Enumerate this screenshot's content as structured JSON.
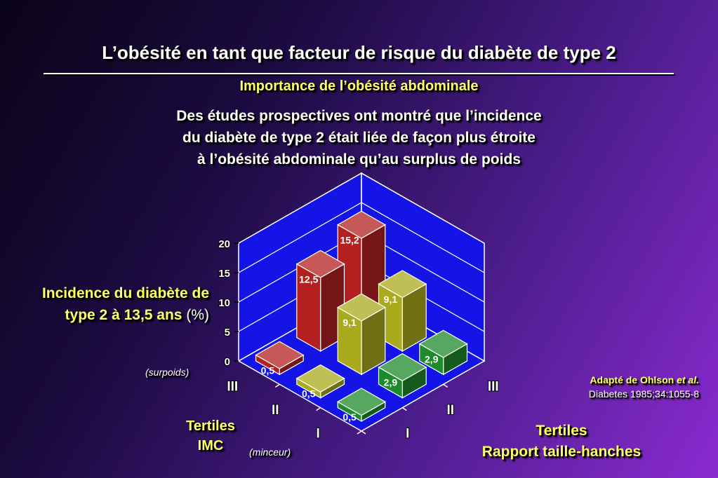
{
  "slide": {
    "title": "L’obésité en tant que facteur de risque du diabète de type 2",
    "subtitle": "Importance de l’obésité abdominale",
    "description_lines": [
      "Des études prospectives ont montré que l’incidence",
      "du diabète de type 2 était liée de façon plus étroite",
      "à l’obésité abdominale qu’au surplus de poids"
    ],
    "source_line1_prefix": "Adapté de Ohlson ",
    "source_line1_italic": "et al.",
    "source_line2": "Diabetes 1985;34:1055-8"
  },
  "chart_data": {
    "type": "bar",
    "ylabel_line1": "Incidence du diabète de",
    "ylabel_line2": "type 2 à 13,5 ans",
    "ylabel_unit": "(%)",
    "ylim": [
      0,
      20
    ],
    "yticks": [
      "0",
      "5",
      "10",
      "15",
      "20"
    ],
    "x_axis": {
      "title_line1": "Tertiles",
      "title_line2": "IMC",
      "categories": [
        "III",
        "II",
        "I"
      ],
      "annotation_high": "(surpoids)",
      "annotation_low": "(minceur)"
    },
    "z_axis": {
      "title_line1": "Tertiles",
      "title_line2": "Rapport taille-hanches",
      "categories": [
        "I",
        "II",
        "III"
      ]
    },
    "bars": [
      {
        "imc": "III",
        "whr": "III",
        "value": 15.2,
        "label": "15,2",
        "color": "#b42020"
      },
      {
        "imc": "III",
        "whr": "II",
        "value": 12.5,
        "label": "12,5",
        "color": "#b42020"
      },
      {
        "imc": "III",
        "whr": "I",
        "value": 0.5,
        "label": "0,5",
        "color": "#b42020"
      },
      {
        "imc": "II",
        "whr": "III",
        "value": 9.1,
        "label": "9,1",
        "color": "#aaaa1e"
      },
      {
        "imc": "II",
        "whr": "II",
        "value": 9.1,
        "label": "9,1",
        "color": "#aaaa1e"
      },
      {
        "imc": "II",
        "whr": "I",
        "value": 0.5,
        "label": "0,5",
        "color": "#aaaa1e"
      },
      {
        "imc": "I",
        "whr": "III",
        "value": 2.9,
        "label": "2,9",
        "color": "#1e8a2a"
      },
      {
        "imc": "I",
        "whr": "II",
        "value": 2.9,
        "label": "2,9",
        "color": "#1e8a2a"
      },
      {
        "imc": "I",
        "whr": "I",
        "value": 0.5,
        "label": "0,5",
        "color": "#1e8a2a"
      }
    ],
    "colors": {
      "wall": "#1414e6",
      "grid": "#ffffff"
    }
  }
}
